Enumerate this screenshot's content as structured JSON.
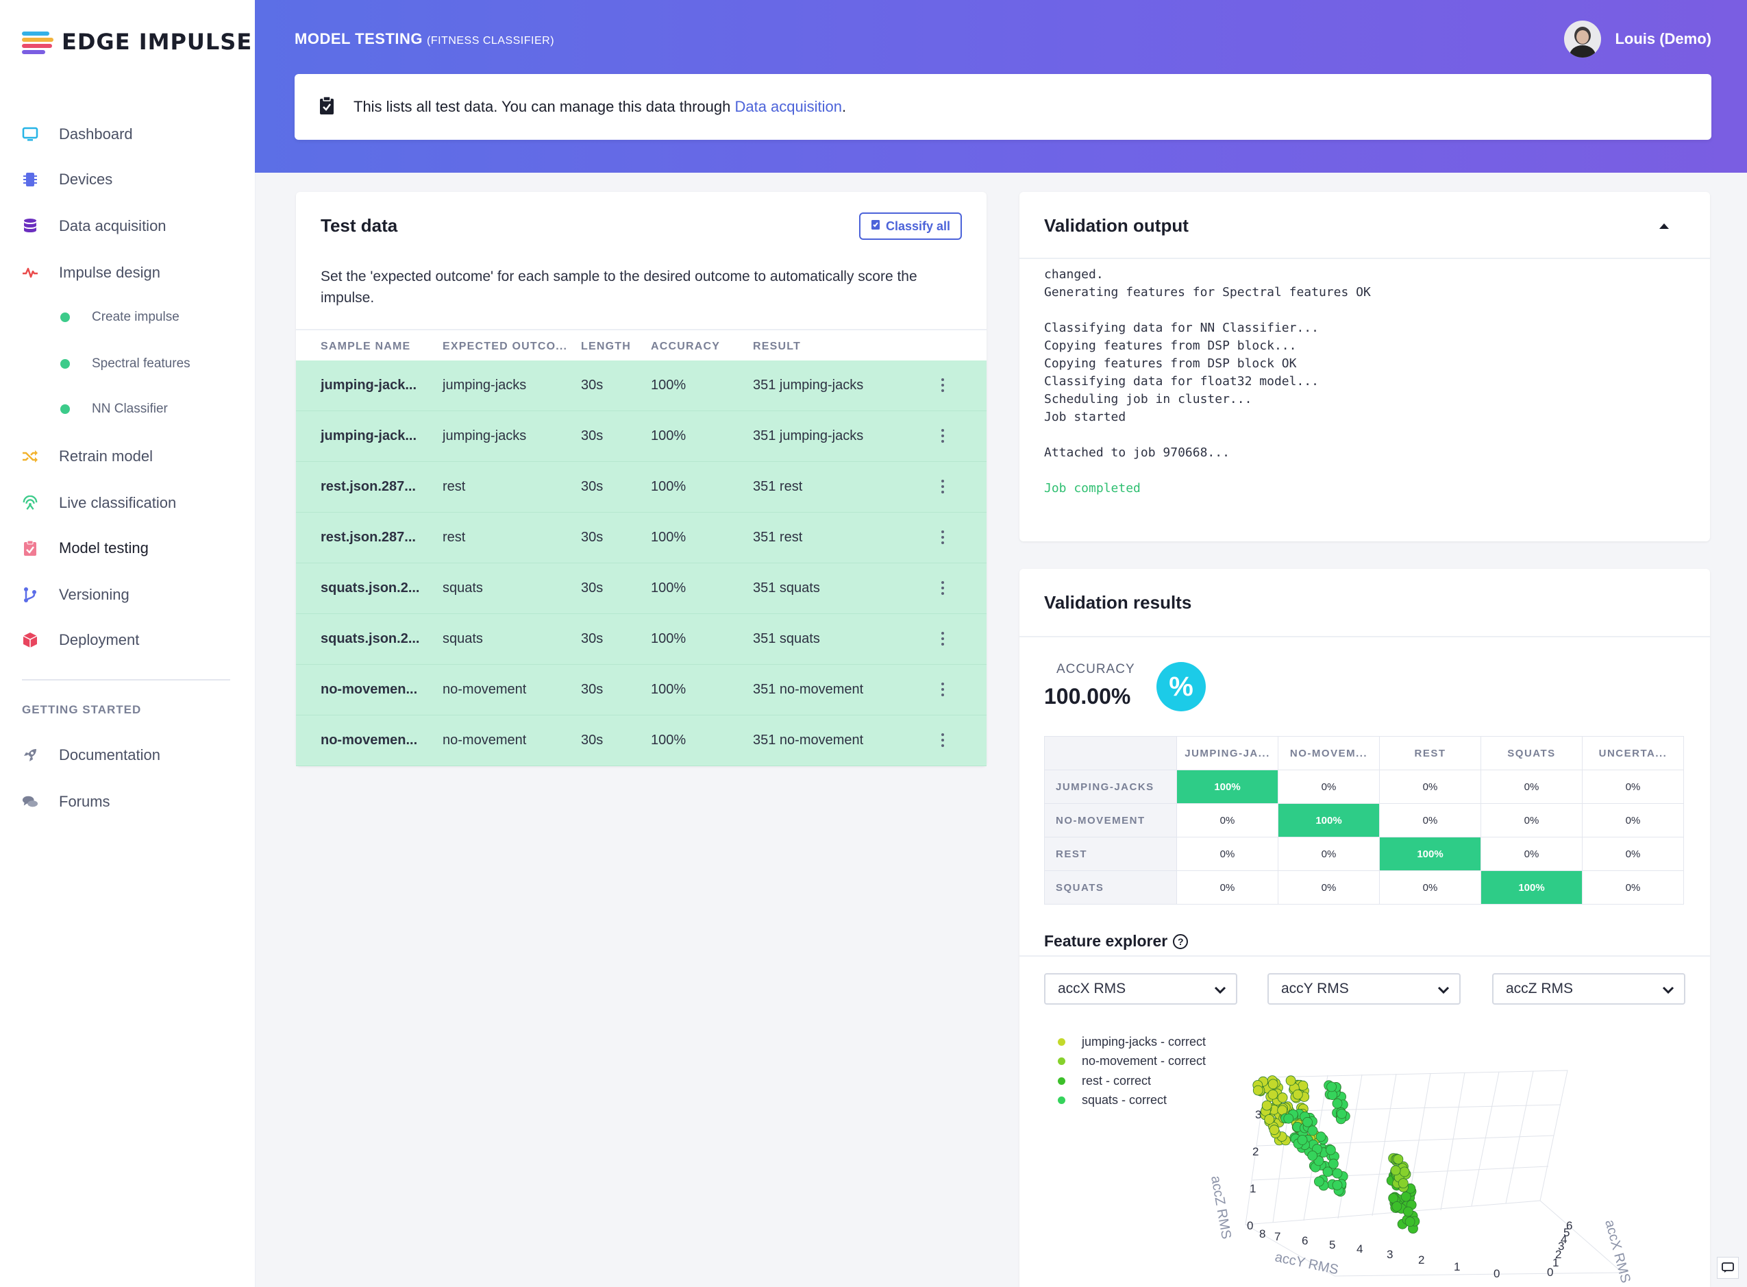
{
  "brand": {
    "name": "EDGE IMPULSE"
  },
  "sidebar": {
    "items": [
      {
        "label": "Dashboard",
        "icon": "monitor-icon"
      },
      {
        "label": "Devices",
        "icon": "chip-icon"
      },
      {
        "label": "Data acquisition",
        "icon": "database-icon"
      },
      {
        "label": "Impulse design",
        "icon": "pulse-icon"
      },
      {
        "label": "Retrain model",
        "icon": "shuffle-icon"
      },
      {
        "label": "Live classification",
        "icon": "broadcast-icon"
      },
      {
        "label": "Model testing",
        "icon": "clipboard-check-icon"
      },
      {
        "label": "Versioning",
        "icon": "branch-icon"
      },
      {
        "label": "Deployment",
        "icon": "box-icon"
      }
    ],
    "sub_items": [
      {
        "label": "Create impulse"
      },
      {
        "label": "Spectral features"
      },
      {
        "label": "NN Classifier"
      }
    ],
    "getting_started_heading": "GETTING STARTED",
    "help_items": [
      {
        "label": "Documentation",
        "icon": "rocket-icon"
      },
      {
        "label": "Forums",
        "icon": "chat-bubbles-icon"
      }
    ],
    "active": "Model testing"
  },
  "header": {
    "title": "MODEL TESTING",
    "subtitle": "(FITNESS CLASSIFIER)",
    "user_name": "Louis (Demo)",
    "banner_text": "This lists all test data. You can manage this data through ",
    "banner_link": "Data acquisition",
    "banner_end": "."
  },
  "test_data": {
    "title": "Test data",
    "classify_button": "Classify all",
    "description": "Set the 'expected outcome' for each sample to the desired outcome to automatically score the impulse.",
    "columns": [
      "SAMPLE NAME",
      "EXPECTED OUTCO...",
      "LENGTH",
      "ACCURACY",
      "RESULT"
    ],
    "rows": [
      {
        "name": "jumping-jack...",
        "expected": "jumping-jacks",
        "length": "30s",
        "accuracy": "100%",
        "result": "351 jumping-jacks"
      },
      {
        "name": "jumping-jack...",
        "expected": "jumping-jacks",
        "length": "30s",
        "accuracy": "100%",
        "result": "351 jumping-jacks"
      },
      {
        "name": "rest.json.287...",
        "expected": "rest",
        "length": "30s",
        "accuracy": "100%",
        "result": "351 rest"
      },
      {
        "name": "rest.json.287...",
        "expected": "rest",
        "length": "30s",
        "accuracy": "100%",
        "result": "351 rest"
      },
      {
        "name": "squats.json.2...",
        "expected": "squats",
        "length": "30s",
        "accuracy": "100%",
        "result": "351 squats"
      },
      {
        "name": "squats.json.2...",
        "expected": "squats",
        "length": "30s",
        "accuracy": "100%",
        "result": "351 squats"
      },
      {
        "name": "no-movemen...",
        "expected": "no-movement",
        "length": "30s",
        "accuracy": "100%",
        "result": "351 no-movement"
      },
      {
        "name": "no-movemen...",
        "expected": "no-movement",
        "length": "30s",
        "accuracy": "100%",
        "result": "351 no-movement"
      }
    ]
  },
  "validation_output": {
    "title": "Validation output",
    "lines": [
      "changed.",
      "Generating features for Spectral features OK",
      "",
      "Classifying data for NN Classifier...",
      "Copying features from DSP block...",
      "Copying features from DSP block OK",
      "Classifying data for float32 model...",
      "Scheduling job in cluster...",
      "Job started",
      "",
      "Attached to job 970668...",
      ""
    ],
    "final_line": "Job completed"
  },
  "validation_results": {
    "title": "Validation results",
    "accuracy_label": "ACCURACY",
    "accuracy_value": "100.00%",
    "accuracy_badge": "%",
    "matrix": {
      "columns": [
        "JUMPING-JA...",
        "NO-MOVEM...",
        "REST",
        "SQUATS",
        "UNCERTA..."
      ],
      "rows": [
        {
          "label": "JUMPING-JACKS",
          "cells": [
            "100%",
            "0%",
            "0%",
            "0%",
            "0%"
          ],
          "hit": 0
        },
        {
          "label": "NO-MOVEMENT",
          "cells": [
            "0%",
            "100%",
            "0%",
            "0%",
            "0%"
          ],
          "hit": 1
        },
        {
          "label": "REST",
          "cells": [
            "0%",
            "0%",
            "100%",
            "0%",
            "0%"
          ],
          "hit": 2
        },
        {
          "label": "SQUATS",
          "cells": [
            "0%",
            "0%",
            "0%",
            "100%",
            "0%"
          ],
          "hit": 3
        }
      ]
    },
    "feature_explorer": {
      "title": "Feature explorer",
      "help_icon": "?",
      "selects": [
        "accX RMS",
        "accY RMS",
        "accZ RMS"
      ],
      "legend": [
        {
          "label": "jumping-jacks - correct",
          "color": "#c3d92b"
        },
        {
          "label": "no-movement - correct",
          "color": "#86d12c"
        },
        {
          "label": "rest - correct",
          "color": "#3cbf2a"
        },
        {
          "label": "squats - correct",
          "color": "#35d35b"
        }
      ],
      "axis_labels": {
        "x": "accX RMS",
        "y": "accY RMS",
        "z": "accZ RMS"
      },
      "z_ticks": [
        "0",
        "1",
        "2",
        "3"
      ],
      "y_ticks": [
        "8",
        "7",
        "6",
        "5",
        "4",
        "3",
        "2",
        "1",
        "0"
      ],
      "x_ticks": [
        "0",
        "1",
        "2",
        "3",
        "4",
        "5",
        "6"
      ]
    }
  },
  "colors": {
    "accent": "#4c63d9",
    "success": "#2ecc87",
    "row_bg": "#c6f1dc"
  }
}
